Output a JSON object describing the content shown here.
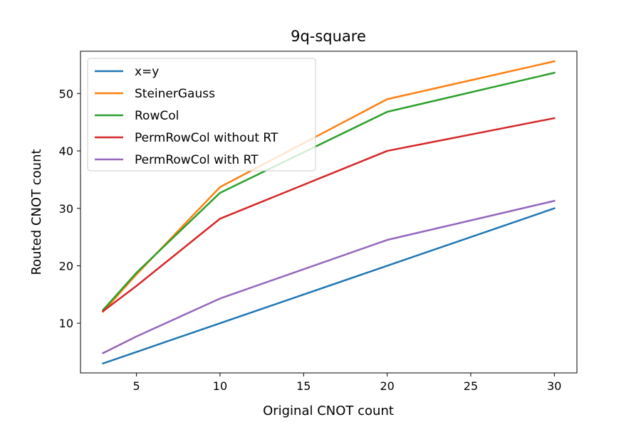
{
  "chart_data": {
    "type": "line",
    "title": "9q-square",
    "xlabel": "Original CNOT count",
    "ylabel": "Routed CNOT count",
    "x": [
      3,
      5,
      10,
      20,
      30
    ],
    "xlim": [
      1.65,
      31.35
    ],
    "ylim": [
      1.35,
      57.35
    ],
    "xticks": [
      5,
      10,
      15,
      20,
      25,
      30
    ],
    "yticks": [
      10,
      20,
      30,
      40,
      50
    ],
    "grid": false,
    "legend_position": "top-left",
    "series": [
      {
        "name": "x=y",
        "color": "#1f77b4",
        "values": [
          3,
          5,
          10,
          20,
          30
        ]
      },
      {
        "name": "SteinerGauss",
        "color": "#ff7f0e",
        "values": [
          12.0,
          18.5,
          33.7,
          49.0,
          55.6
        ]
      },
      {
        "name": "RowCol",
        "color": "#2ca02c",
        "values": [
          12.3,
          18.8,
          32.7,
          46.8,
          53.6
        ]
      },
      {
        "name": "PermRowCol without RT",
        "color": "#d62728",
        "values": [
          12.1,
          16.5,
          28.2,
          40.0,
          45.7
        ]
      },
      {
        "name": "PermRowCol with RT",
        "color": "#9467bd",
        "values": [
          4.8,
          7.7,
          14.3,
          24.5,
          31.3
        ]
      }
    ]
  }
}
